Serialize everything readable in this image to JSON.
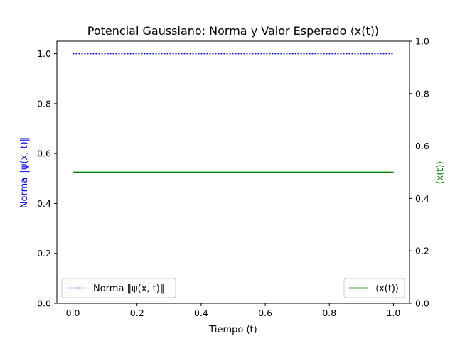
{
  "chart_data": {
    "type": "line",
    "title": "Potencial Gaussiano: Norma y Valor Esperado ⟨x(t)⟩",
    "xlabel": "Tiempo (t)",
    "ylabel_left": "Norma ‖ψ(x, t)‖",
    "ylabel_right": "⟨x(t)⟩",
    "xlim": [
      -0.05,
      1.05
    ],
    "ylim_left": [
      0.0,
      1.05
    ],
    "ylim_right": [
      0.0,
      1.0
    ],
    "x_ticks": [
      "0.0",
      "0.2",
      "0.4",
      "0.6",
      "0.8",
      "1.0"
    ],
    "y_ticks_left": [
      "0.0",
      "0.2",
      "0.4",
      "0.6",
      "0.8",
      "1.0"
    ],
    "y_ticks_right": [
      "0.0",
      "0.2",
      "0.4",
      "0.6",
      "0.8",
      "1.0"
    ],
    "grid": false,
    "series": [
      {
        "name": "Norma ‖ψ(x, t)‖",
        "axis": "left",
        "color": "#0000ff",
        "linestyle": "dotted",
        "x": [
          0.0,
          1.0
        ],
        "y": [
          1.0,
          1.0
        ],
        "legend_position": "lower-left"
      },
      {
        "name": "⟨x(t)⟩",
        "axis": "right",
        "color": "#008000",
        "linestyle": "solid",
        "x": [
          0.0,
          1.0
        ],
        "y": [
          0.5,
          0.5
        ],
        "legend_position": "lower-right"
      }
    ],
    "colors": {
      "left_label": "#0000ff",
      "right_label": "#008000"
    }
  }
}
